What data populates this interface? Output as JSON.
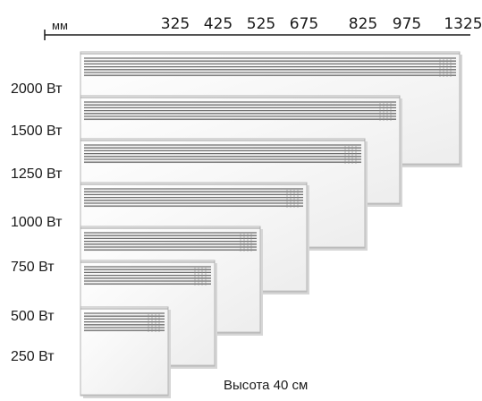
{
  "axis": {
    "unit": "мм",
    "ticks": [
      "325",
      "425",
      "525",
      "675",
      "825",
      "975",
      "1325"
    ]
  },
  "heaters": [
    {
      "power": "2000 Вт"
    },
    {
      "power": "1500 Вт"
    },
    {
      "power": "1250 Вт"
    },
    {
      "power": "1000 Вт"
    },
    {
      "power": "750 Вт"
    },
    {
      "power": "500 Вт"
    },
    {
      "power": "250 Вт"
    }
  ],
  "caption": "Высота 40 см",
  "colors": {
    "panel": "#ffffff",
    "panel_edge": "#b5b5b5",
    "shadow": "#d6d6d6",
    "grille": "#6e6e6e",
    "grille_light": "#f2f2f2",
    "axis": "#1a1a1a"
  }
}
